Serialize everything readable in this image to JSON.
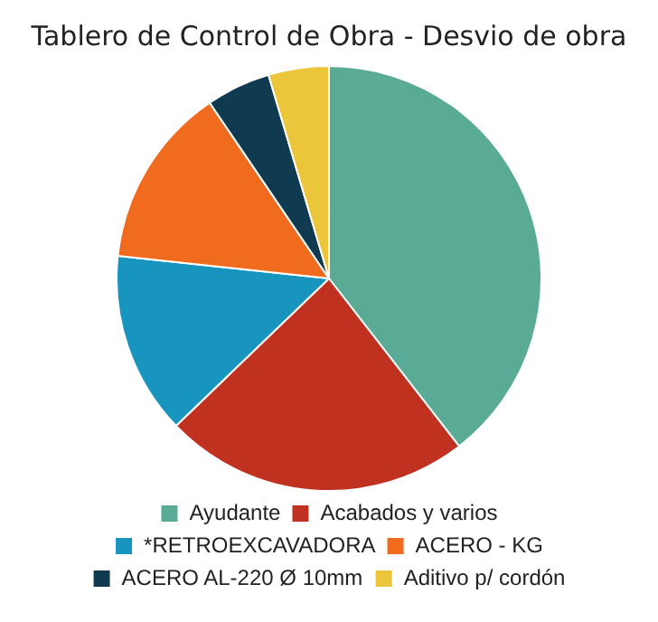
{
  "chart_data": {
    "type": "pie",
    "title": "Tablero de Control de Obra - Desvio de obra",
    "categories": [
      "Ayudante",
      "Acabados y varios",
      "*RETROEXCAVADORA",
      "ACERO - KG",
      "ACERO AL-220 Ø 10mm",
      "Aditivo p/ cordón"
    ],
    "values": [
      39.5,
      23.3,
      13.9,
      13.8,
      4.9,
      4.6
    ],
    "colors": [
      "#5aab95",
      "#c0311f",
      "#1795bf",
      "#f06b1d",
      "#0f3a4f",
      "#ebc63a"
    ],
    "legend": "bottom"
  }
}
